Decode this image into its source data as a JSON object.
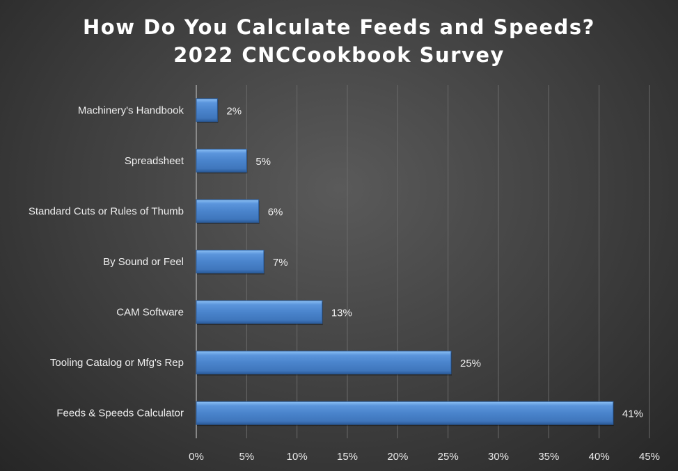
{
  "chart_data": {
    "type": "bar",
    "orientation": "horizontal",
    "title": "How Do You Calculate Feeds and Speeds?",
    "subtitle": "2022 CNCCookbook Survey",
    "categories": [
      "Machinery's Handbook",
      "Spreadsheet",
      "Standard Cuts or Rules of Thumb",
      "By Sound or Feel",
      "CAM Software",
      "Tooling Catalog or Mfg's Rep",
      "Feeds & Speeds Calculator"
    ],
    "values": [
      2.1,
      5.0,
      6.2,
      6.7,
      12.5,
      25.3,
      41.4
    ],
    "data_labels": [
      "2%",
      "5%",
      "6%",
      "7%",
      "13%",
      "25%",
      "41%"
    ],
    "x_ticks": [
      "0%",
      "5%",
      "10%",
      "15%",
      "20%",
      "25%",
      "30%",
      "35%",
      "40%",
      "45%"
    ],
    "xlim": [
      0,
      45
    ],
    "xlabel": "",
    "ylabel": "",
    "grid": "vertical",
    "legend": "none",
    "colors": {
      "bar": "#4a84cc",
      "bar_light": "#8cc0f5",
      "bar_dark": "#2a5a98",
      "background": "#3e3e3e",
      "text": "#ffffff",
      "grid": "#6a6a6a"
    }
  }
}
